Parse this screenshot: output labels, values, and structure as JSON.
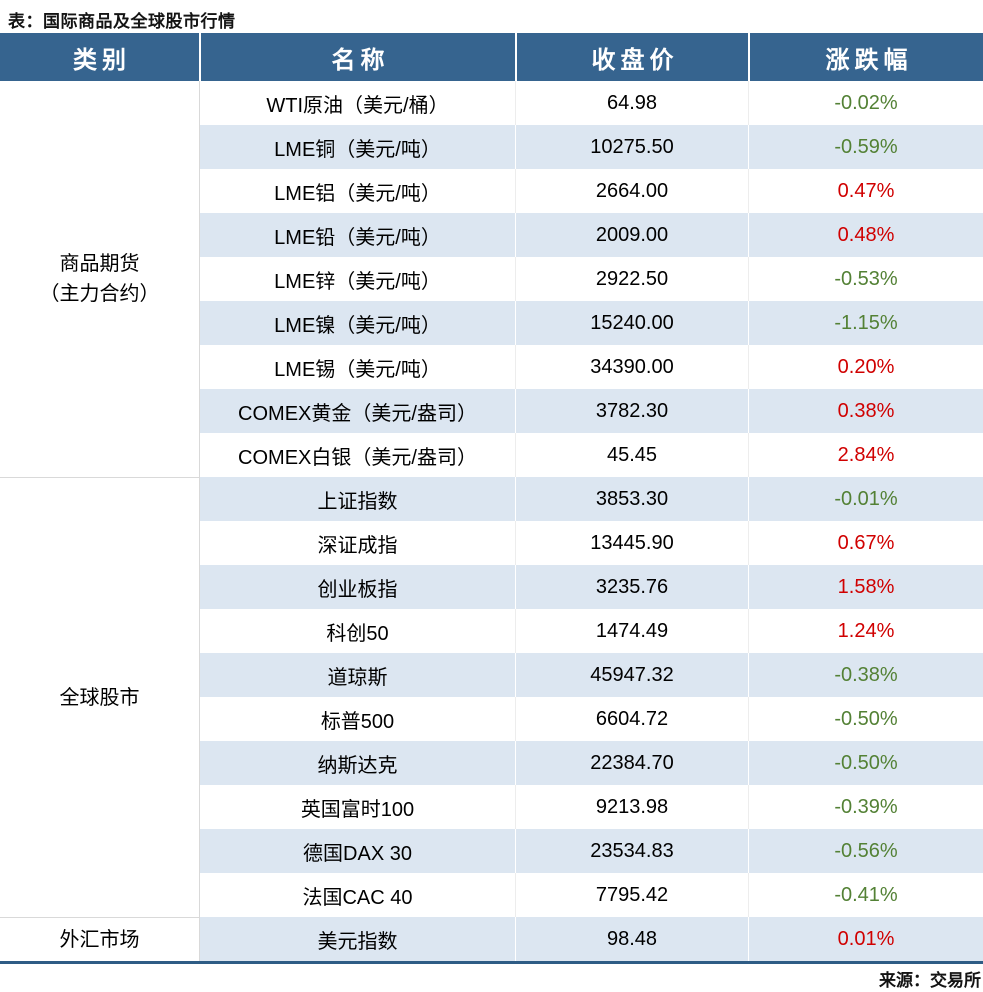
{
  "chart_data": {
    "type": "table",
    "title": "表：国际商品及全球股市行情",
    "source": "来源：交易所",
    "columns": [
      "类别",
      "名称",
      "收盘价",
      "涨跌幅"
    ],
    "row_groups": [
      {
        "category_lines": [
          "商品期货",
          "（主力合约）"
        ],
        "rows": [
          [
            "WTI原油（美元/桶）",
            "64.98",
            "-0.02%",
            "down"
          ],
          [
            "LME铜（美元/吨）",
            "10275.50",
            "-0.59%",
            "down"
          ],
          [
            "LME铝（美元/吨）",
            "2664.00",
            "0.47%",
            "up"
          ],
          [
            "LME铅（美元/吨）",
            "2009.00",
            "0.48%",
            "up"
          ],
          [
            "LME锌（美元/吨）",
            "2922.50",
            "-0.53%",
            "down"
          ],
          [
            "LME镍（美元/吨）",
            "15240.00",
            "-1.15%",
            "down"
          ],
          [
            "LME锡（美元/吨）",
            "34390.00",
            "0.20%",
            "up"
          ],
          [
            "COMEX黄金（美元/盎司）",
            "3782.30",
            "0.38%",
            "up"
          ],
          [
            "COMEX白银（美元/盎司）",
            "45.45",
            "2.84%",
            "up"
          ]
        ]
      },
      {
        "category_lines": [
          "全球股市"
        ],
        "rows": [
          [
            "上证指数",
            "3853.30",
            "-0.01%",
            "down"
          ],
          [
            "深证成指",
            "13445.90",
            "0.67%",
            "up"
          ],
          [
            "创业板指",
            "3235.76",
            "1.58%",
            "up"
          ],
          [
            "科创50",
            "1474.49",
            "1.24%",
            "up"
          ],
          [
            "道琼斯",
            "45947.32",
            "-0.38%",
            "down"
          ],
          [
            "标普500",
            "6604.72",
            "-0.50%",
            "down"
          ],
          [
            "纳斯达克",
            "22384.70",
            "-0.50%",
            "down"
          ],
          [
            "英国富时100",
            "9213.98",
            "-0.39%",
            "down"
          ],
          [
            "德国DAX 30",
            "23534.83",
            "-0.56%",
            "down"
          ],
          [
            "法国CAC 40",
            "7795.42",
            "-0.41%",
            "down"
          ]
        ]
      },
      {
        "category_lines": [
          "外汇市场"
        ],
        "rows": [
          [
            "美元指数",
            "98.48",
            "0.01%",
            "up"
          ]
        ]
      }
    ]
  },
  "colors": {
    "header_bg": "#36648f",
    "stripe": "#dce6f1",
    "up_red": "#d00000",
    "down_green": "#538135",
    "bottom_border": "#2e5c85"
  }
}
